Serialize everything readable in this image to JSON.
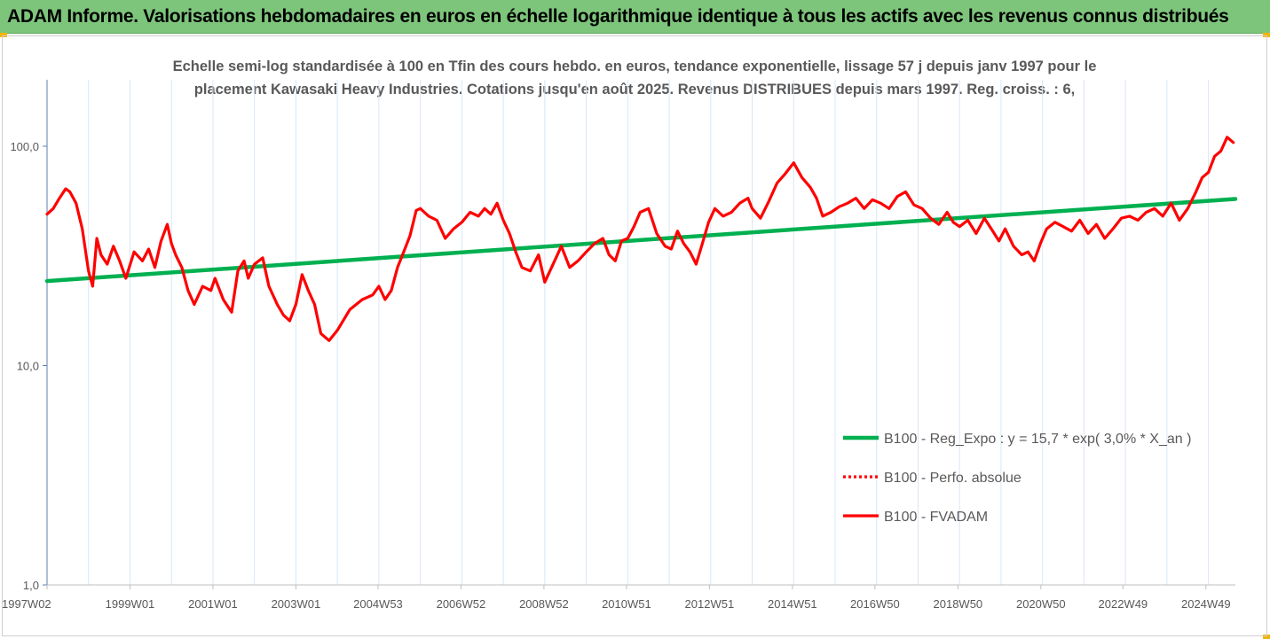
{
  "header": {
    "title": "ADAM Informe. Valorisations hebdomadaires en euros en échelle logarithmique identique à tous les actifs avec les revenus connus distribués"
  },
  "colors": {
    "banner": "#7ec57c",
    "trend": "#00b050",
    "price": "#ff0000",
    "text": "#595959",
    "grid": "#d9e7f5"
  },
  "chart_data": {
    "type": "line",
    "title_line1": "Echelle semi-log standardisée à 100 en Tfin des cours hebdo. en euros, tendance exponentielle, lissage 57 j depuis janv 1997 pour le",
    "title_line2": "placement Kawasaki Heavy Industries. Cotations jusqu'en août 2025. Revenus DISTRIBUES depuis mars 1997. Reg. croiss. : 6,",
    "y_scale": "log",
    "ylim": [
      1,
      200
    ],
    "xlim": [
      1997.0,
      2025.65
    ],
    "y_ticks": [
      {
        "value": 1,
        "label": "1,0"
      },
      {
        "value": 10,
        "label": "10,0"
      },
      {
        "value": 100,
        "label": "100,0"
      }
    ],
    "x_ticks": [
      {
        "value": 1997.0,
        "label": "1997W02"
      },
      {
        "value": 1999.0,
        "label": "1999W01"
      },
      {
        "value": 2001.0,
        "label": "2001W01"
      },
      {
        "value": 2003.0,
        "label": "2003W01"
      },
      {
        "value": 2004.98,
        "label": "2004W53"
      },
      {
        "value": 2006.98,
        "label": "2006W52"
      },
      {
        "value": 2008.98,
        "label": "2008W52"
      },
      {
        "value": 2010.97,
        "label": "2010W51"
      },
      {
        "value": 2012.97,
        "label": "2012W51"
      },
      {
        "value": 2014.97,
        "label": "2014W51"
      },
      {
        "value": 2016.96,
        "label": "2016W50"
      },
      {
        "value": 2018.96,
        "label": "2018W50"
      },
      {
        "value": 2020.96,
        "label": "2020W50"
      },
      {
        "value": 2022.94,
        "label": "2022W49"
      },
      {
        "value": 2024.94,
        "label": "2024W49"
      }
    ],
    "legend_position": "bottom-right",
    "series": [
      {
        "name": "B100 - Reg_Expo : y = 15,7 * exp( 3,0% *  X_an )",
        "style": "solid-thick",
        "color": "#00b050",
        "x": [
          1997.0,
          2025.65
        ],
        "y": [
          24.3,
          57.5
        ]
      },
      {
        "name": "B100 - Perfo. absolue",
        "style": "dotted",
        "color": "#ff0000",
        "x": [],
        "y": []
      },
      {
        "name": "B100 - FVADAM",
        "style": "solid",
        "color": "#ff0000",
        "x": [
          1997.0,
          1997.15,
          1997.3,
          1997.45,
          1997.55,
          1997.7,
          1997.85,
          1998.0,
          1998.1,
          1998.2,
          1998.3,
          1998.45,
          1998.6,
          1998.75,
          1998.9,
          1999.1,
          1999.3,
          1999.45,
          1999.6,
          1999.75,
          1999.9,
          2000.0,
          2000.1,
          2000.25,
          2000.4,
          2000.55,
          2000.75,
          2000.95,
          2001.05,
          2001.25,
          2001.45,
          2001.6,
          2001.75,
          2001.85,
          2002.0,
          2002.2,
          2002.35,
          2002.55,
          2002.7,
          2002.85,
          2003.0,
          2003.15,
          2003.3,
          2003.45,
          2003.6,
          2003.8,
          2004.0,
          2004.3,
          2004.6,
          2004.85,
          2005.0,
          2005.15,
          2005.3,
          2005.45,
          2005.6,
          2005.75,
          2005.9,
          2006.0,
          2006.2,
          2006.4,
          2006.6,
          2006.8,
          2007.0,
          2007.2,
          2007.4,
          2007.55,
          2007.7,
          2007.85,
          2008.0,
          2008.15,
          2008.3,
          2008.45,
          2008.65,
          2008.85,
          2009.0,
          2009.2,
          2009.4,
          2009.6,
          2009.8,
          2010.0,
          2010.2,
          2010.4,
          2010.55,
          2010.7,
          2010.85,
          2011.0,
          2011.15,
          2011.3,
          2011.5,
          2011.7,
          2011.9,
          2012.05,
          2012.2,
          2012.35,
          2012.5,
          2012.65,
          2012.8,
          2012.95,
          2013.1,
          2013.3,
          2013.5,
          2013.7,
          2013.9,
          2014.0,
          2014.2,
          2014.4,
          2014.6,
          2014.8,
          2015.0,
          2015.2,
          2015.4,
          2015.55,
          2015.7,
          2015.9,
          2016.1,
          2016.3,
          2016.5,
          2016.7,
          2016.9,
          2017.1,
          2017.3,
          2017.5,
          2017.7,
          2017.9,
          2018.1,
          2018.3,
          2018.5,
          2018.7,
          2018.85,
          2019.0,
          2019.2,
          2019.4,
          2019.6,
          2019.8,
          2019.95,
          2020.1,
          2020.3,
          2020.5,
          2020.65,
          2020.8,
          2020.95,
          2021.1,
          2021.3,
          2021.5,
          2021.7,
          2021.9,
          2022.1,
          2022.3,
          2022.5,
          2022.7,
          2022.9,
          2023.1,
          2023.3,
          2023.5,
          2023.7,
          2023.9,
          2024.1,
          2024.3,
          2024.5,
          2024.7,
          2024.85,
          2025.0,
          2025.15,
          2025.3,
          2025.45,
          2025.6
        ],
        "y": [
          49,
          52,
          58,
          64,
          62,
          55,
          42,
          27,
          23,
          38,
          32,
          29,
          35,
          30,
          25,
          33,
          30,
          34,
          28,
          37,
          44,
          36,
          32,
          28,
          22,
          19,
          23,
          22,
          25,
          20,
          17.5,
          27,
          30,
          25,
          29,
          31,
          23,
          19,
          17,
          16,
          19,
          26,
          22,
          19,
          14,
          13,
          14.5,
          18,
          20,
          21,
          23,
          20,
          22,
          28,
          33,
          39,
          51,
          52,
          48,
          46,
          38,
          42,
          45,
          50,
          48,
          52,
          49,
          55,
          46,
          40,
          33,
          28,
          27,
          32,
          24,
          29,
          35,
          28,
          30,
          33,
          36,
          38,
          32,
          30,
          37,
          38,
          43,
          50,
          52,
          40,
          35,
          34,
          41,
          36,
          33,
          29,
          36,
          45,
          52,
          48,
          50,
          55,
          58,
          52,
          47,
          56,
          68,
          75,
          84,
          72,
          65,
          58,
          48,
          50,
          53,
          55,
          58,
          52,
          57,
          55,
          52,
          59,
          62,
          54,
          52,
          47,
          44,
          50,
          45,
          43,
          46,
          40,
          47,
          41,
          37,
          42,
          35,
          32,
          33,
          30,
          36,
          42,
          45,
          43,
          41,
          46,
          40,
          44,
          38,
          42,
          47,
          48,
          46,
          50,
          52,
          48,
          55,
          46,
          52,
          62,
          72,
          76,
          90,
          95,
          110,
          104
        ]
      }
    ]
  }
}
